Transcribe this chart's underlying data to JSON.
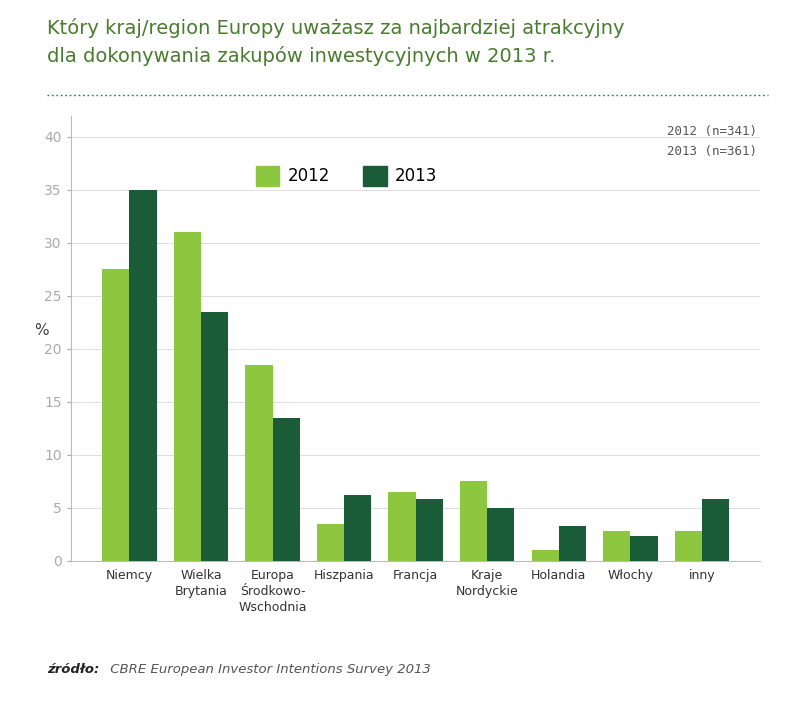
{
  "title_line1": "Który kraj/region Europy uważasz za najbardziej atrakcyjny",
  "title_line2": "dla dokonywania zakupów inwestycyjnych w 2013 r.",
  "categories": [
    "Niemcy",
    "Wielka\nBrytania",
    "Europa\nŚrodkowo-\nWschodnia",
    "Hiszpania",
    "Francja",
    "Kraje\nNordyckie",
    "Holandia",
    "Włochy",
    "inny"
  ],
  "values_2012": [
    27.5,
    31.0,
    18.5,
    3.5,
    6.5,
    7.5,
    1.0,
    2.8,
    2.8
  ],
  "values_2013": [
    35.0,
    23.5,
    13.5,
    6.2,
    5.8,
    5.0,
    3.3,
    2.3,
    5.8
  ],
  "color_2012": "#8dc63f",
  "color_2013": "#1a5c38",
  "ylabel": "%",
  "ylim": [
    0,
    42
  ],
  "yticks": [
    0,
    5,
    10,
    15,
    20,
    25,
    30,
    35,
    40
  ],
  "legend_2012": "2012",
  "legend_2013": "2013",
  "note": "2012 (n=341)\n2013 (n=361)",
  "source_label": "źródło:",
  "source_text": " CBRE European Investor Intentions Survey 2013",
  "title_color": "#4a7c2f",
  "dotted_line_color": "#2e7d32",
  "background_color": "#ffffff",
  "bar_width": 0.38
}
